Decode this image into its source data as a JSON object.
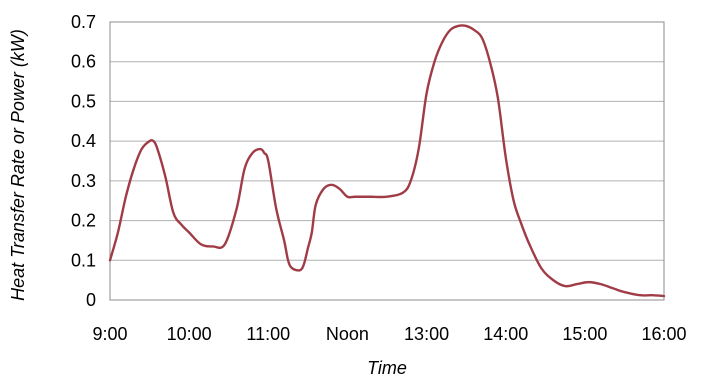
{
  "chart_data": {
    "type": "line",
    "title": "",
    "xlabel": "Time",
    "ylabel": "Heat Transfer Rate or Power (kW)",
    "x_tick_labels": [
      "9:00",
      "10:00",
      "11:00",
      "Noon",
      "13:00",
      "14:00",
      "15:00",
      "16:00"
    ],
    "y_tick_labels": [
      "0",
      "0.1",
      "0.2",
      "0.3",
      "0.4",
      "0.5",
      "0.6",
      "0.7"
    ],
    "xlim": [
      9,
      16
    ],
    "ylim": [
      0,
      0.7
    ],
    "grid": true,
    "line_color": "#a03c46",
    "series": [
      {
        "x": [
          9.0,
          9.1,
          9.2,
          9.3,
          9.4,
          9.5,
          9.55,
          9.6,
          9.7,
          9.8,
          9.9,
          10.0,
          10.15,
          10.3,
          10.45,
          10.6,
          10.7,
          10.8,
          10.9,
          10.95,
          11.0,
          11.1,
          11.2,
          11.25,
          11.3,
          11.4,
          11.45,
          11.5,
          11.55,
          11.6,
          11.7,
          11.8,
          11.9,
          12.0,
          12.1,
          12.3,
          12.5,
          12.7,
          12.8,
          12.9,
          13.0,
          13.1,
          13.2,
          13.3,
          13.4,
          13.5,
          13.6,
          13.7,
          13.8,
          13.9,
          14.0,
          14.1,
          14.2,
          14.3,
          14.45,
          14.6,
          14.75,
          14.9,
          15.05,
          15.2,
          15.35,
          15.5,
          15.7,
          15.85,
          16.0
        ],
        "y": [
          0.1,
          0.17,
          0.26,
          0.33,
          0.38,
          0.4,
          0.4,
          0.38,
          0.31,
          0.22,
          0.19,
          0.17,
          0.14,
          0.135,
          0.14,
          0.23,
          0.33,
          0.37,
          0.38,
          0.37,
          0.35,
          0.23,
          0.15,
          0.1,
          0.08,
          0.075,
          0.09,
          0.13,
          0.17,
          0.24,
          0.28,
          0.29,
          0.28,
          0.26,
          0.26,
          0.26,
          0.26,
          0.27,
          0.3,
          0.38,
          0.52,
          0.6,
          0.65,
          0.68,
          0.69,
          0.69,
          0.68,
          0.66,
          0.6,
          0.51,
          0.36,
          0.25,
          0.19,
          0.14,
          0.08,
          0.05,
          0.035,
          0.04,
          0.045,
          0.04,
          0.03,
          0.02,
          0.012,
          0.012,
          0.01
        ]
      }
    ]
  }
}
